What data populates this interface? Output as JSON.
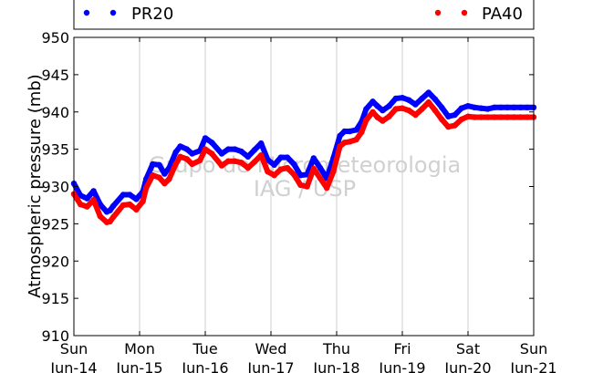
{
  "chart_data": {
    "type": "line",
    "title": "",
    "xlabel": "",
    "ylabel": "Atmospheric pressure (mb)",
    "ylim": [
      910,
      950
    ],
    "yticks": [
      910,
      915,
      920,
      925,
      930,
      935,
      940,
      945,
      950
    ],
    "xlim": [
      0,
      7
    ],
    "xticks": [
      {
        "day": "Sun",
        "date": "Jun-14"
      },
      {
        "day": "Mon",
        "date": "Jun-15"
      },
      {
        "day": "Tue",
        "date": "Jun-16"
      },
      {
        "day": "Wed",
        "date": "Jun-17"
      },
      {
        "day": "Thu",
        "date": "Jun-18"
      },
      {
        "day": "Fri",
        "date": "Jun-19"
      },
      {
        "day": "Sat",
        "date": "Jun-20"
      },
      {
        "day": "Sun",
        "date": "Jun-21"
      }
    ],
    "grid": "vertical",
    "legend_placement": "top",
    "watermark": [
      "Grupo de Micrometeorologia",
      "IAG / USP"
    ],
    "series": [
      {
        "name": "PR20",
        "color": "#0000ff",
        "x": [
          0,
          0.1,
          0.2,
          0.3,
          0.4,
          0.5,
          0.55,
          0.6,
          0.75,
          0.85,
          0.95,
          1.05,
          1.1,
          1.2,
          1.3,
          1.38,
          1.45,
          1.55,
          1.62,
          1.72,
          1.8,
          1.92,
          2.0,
          2.1,
          2.25,
          2.35,
          2.45,
          2.55,
          2.65,
          2.75,
          2.85,
          2.95,
          3.05,
          3.15,
          3.25,
          3.35,
          3.45,
          3.55,
          3.65,
          3.75,
          3.85,
          3.95,
          4.05,
          4.12,
          4.2,
          4.3,
          4.38,
          4.45,
          4.55,
          4.62,
          4.7,
          4.8,
          4.9,
          5.0,
          5.1,
          5.2,
          5.3,
          5.4,
          5.5,
          5.6,
          5.7,
          5.8,
          5.9,
          6.0,
          6.1,
          6.2,
          6.3,
          6.4,
          6.5,
          6.6,
          6.7,
          6.8,
          6.9,
          7.0
        ],
        "y": [
          930.4,
          928.8,
          928.4,
          929.4,
          927.6,
          926.6,
          926.8,
          927.4,
          928.9,
          928.9,
          928.3,
          929.3,
          931.0,
          933.0,
          932.9,
          931.7,
          932.5,
          934.6,
          935.4,
          935.0,
          934.4,
          934.8,
          936.5,
          935.9,
          934.4,
          935.0,
          935.0,
          934.7,
          934.0,
          934.9,
          935.8,
          933.6,
          932.9,
          933.9,
          933.9,
          933.0,
          931.5,
          931.6,
          933.8,
          932.5,
          931.1,
          933.8,
          936.8,
          937.4,
          937.4,
          937.6,
          938.7,
          940.4,
          941.4,
          940.8,
          940.2,
          940.8,
          941.8,
          941.9,
          941.6,
          941.0,
          941.8,
          942.6,
          941.7,
          940.6,
          939.4,
          939.6,
          940.5,
          940.8,
          940.6,
          940.5,
          940.4,
          940.6,
          940.6,
          940.6,
          940.6,
          940.6,
          940.6,
          940.6
        ]
      },
      {
        "name": "PA40",
        "color": "#ff0000",
        "x": [
          0,
          0.1,
          0.2,
          0.3,
          0.4,
          0.5,
          0.55,
          0.6,
          0.75,
          0.85,
          0.95,
          1.05,
          1.1,
          1.2,
          1.3,
          1.38,
          1.45,
          1.55,
          1.62,
          1.72,
          1.8,
          1.92,
          2.0,
          2.1,
          2.25,
          2.35,
          2.45,
          2.55,
          2.65,
          2.75,
          2.85,
          2.95,
          3.05,
          3.15,
          3.25,
          3.35,
          3.45,
          3.55,
          3.65,
          3.75,
          3.85,
          3.95,
          4.05,
          4.12,
          4.2,
          4.3,
          4.38,
          4.45,
          4.55,
          4.62,
          4.7,
          4.8,
          4.9,
          5.0,
          5.1,
          5.2,
          5.3,
          5.4,
          5.5,
          5.6,
          5.7,
          5.8,
          5.9,
          6.0,
          6.1,
          6.2,
          6.3,
          6.4,
          6.5,
          6.6,
          6.7,
          6.8,
          6.9,
          7.0
        ],
        "y": [
          929.0,
          927.6,
          927.3,
          928.2,
          926.0,
          925.2,
          925.3,
          925.9,
          927.5,
          927.6,
          926.9,
          928.0,
          929.8,
          931.5,
          931.2,
          930.4,
          931.0,
          933.0,
          934.0,
          933.7,
          933.0,
          933.5,
          935.0,
          934.4,
          932.8,
          933.4,
          933.4,
          933.2,
          932.5,
          933.3,
          934.2,
          932.0,
          931.5,
          932.3,
          932.5,
          931.6,
          930.2,
          930.0,
          932.4,
          931.1,
          929.8,
          932.0,
          935.4,
          935.9,
          936.0,
          936.3,
          937.3,
          938.9,
          940.0,
          939.3,
          938.8,
          939.4,
          940.4,
          940.5,
          940.2,
          939.6,
          940.4,
          941.3,
          940.2,
          939.0,
          938.0,
          938.2,
          939.0,
          939.4,
          939.3,
          939.3,
          939.3,
          939.3,
          939.3,
          939.3,
          939.3,
          939.3,
          939.3,
          939.3
        ]
      }
    ]
  }
}
